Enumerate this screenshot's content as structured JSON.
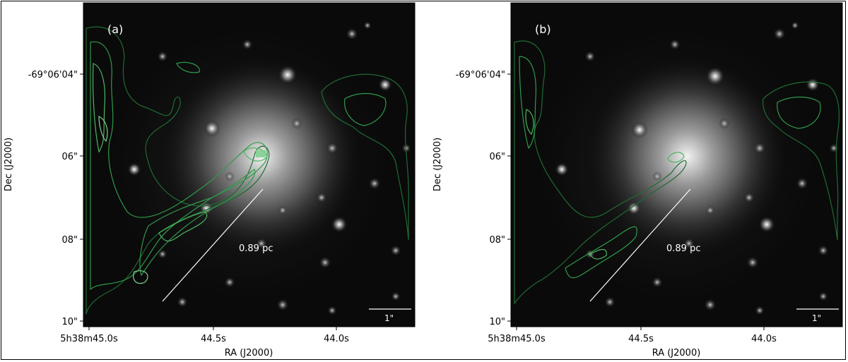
{
  "figure": {
    "panels": [
      {
        "label": "(a)",
        "scale_label": "0.89 pc",
        "scalebar_label": "1\"",
        "xlabel": "RA (J2000)",
        "ylabel": "Dec (J2000)",
        "xticks": [
          "5h38m45.0s",
          "44.5s",
          "44.0s"
        ],
        "yticks": [
          "-69°06'04\"",
          "06\"",
          "08\"",
          "10\""
        ]
      },
      {
        "label": "(b)",
        "scale_label": "0.89 pc",
        "scalebar_label": "1\"",
        "xlabel": "RA (J2000)",
        "ylabel": "Dec (J2000)",
        "xticks": [
          "5h38m45.0s",
          "44.5s",
          "44.0s"
        ],
        "yticks": [
          "-69°06'04\"",
          "06\"",
          "08\"",
          "10\""
        ]
      }
    ],
    "colors": {
      "contour_dark": "#1f6b33",
      "contour_mid": "#2f9a4a",
      "contour_light": "#7fd08f",
      "scalebar": "#ffffff"
    }
  }
}
